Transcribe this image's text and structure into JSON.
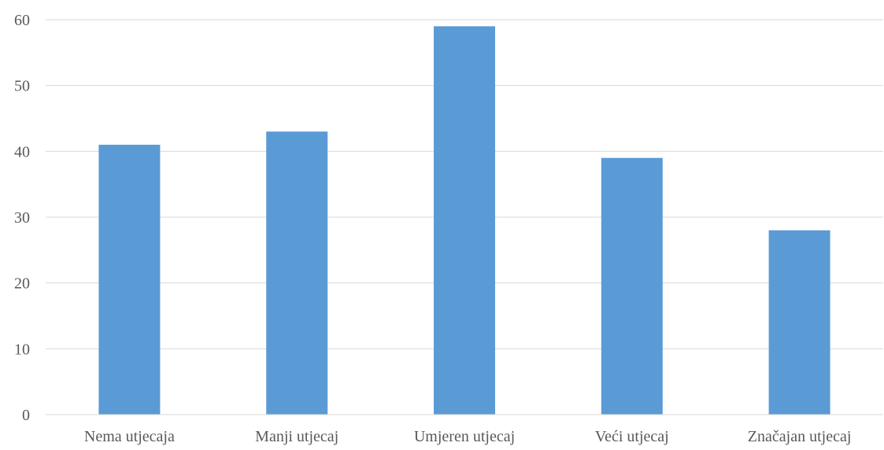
{
  "chart_data": {
    "type": "bar",
    "title": "",
    "xlabel": "",
    "ylabel": "",
    "categories": [
      "Nema utjecaja",
      "Manji utjecaj",
      "Umjeren utjecaj",
      "Veći utjecaj",
      "Značajan utjecaj"
    ],
    "values": [
      41,
      43,
      59,
      39,
      28
    ],
    "ylim": [
      0,
      60
    ],
    "yticks": [
      "0",
      "10",
      "20",
      "30",
      "40",
      "50",
      "60"
    ],
    "grid": true,
    "legend": "none",
    "colors": {
      "bar": "#5B9BD5",
      "grid": "#D9D9D9",
      "axis": "#D9D9D9",
      "text": "#595959"
    }
  }
}
